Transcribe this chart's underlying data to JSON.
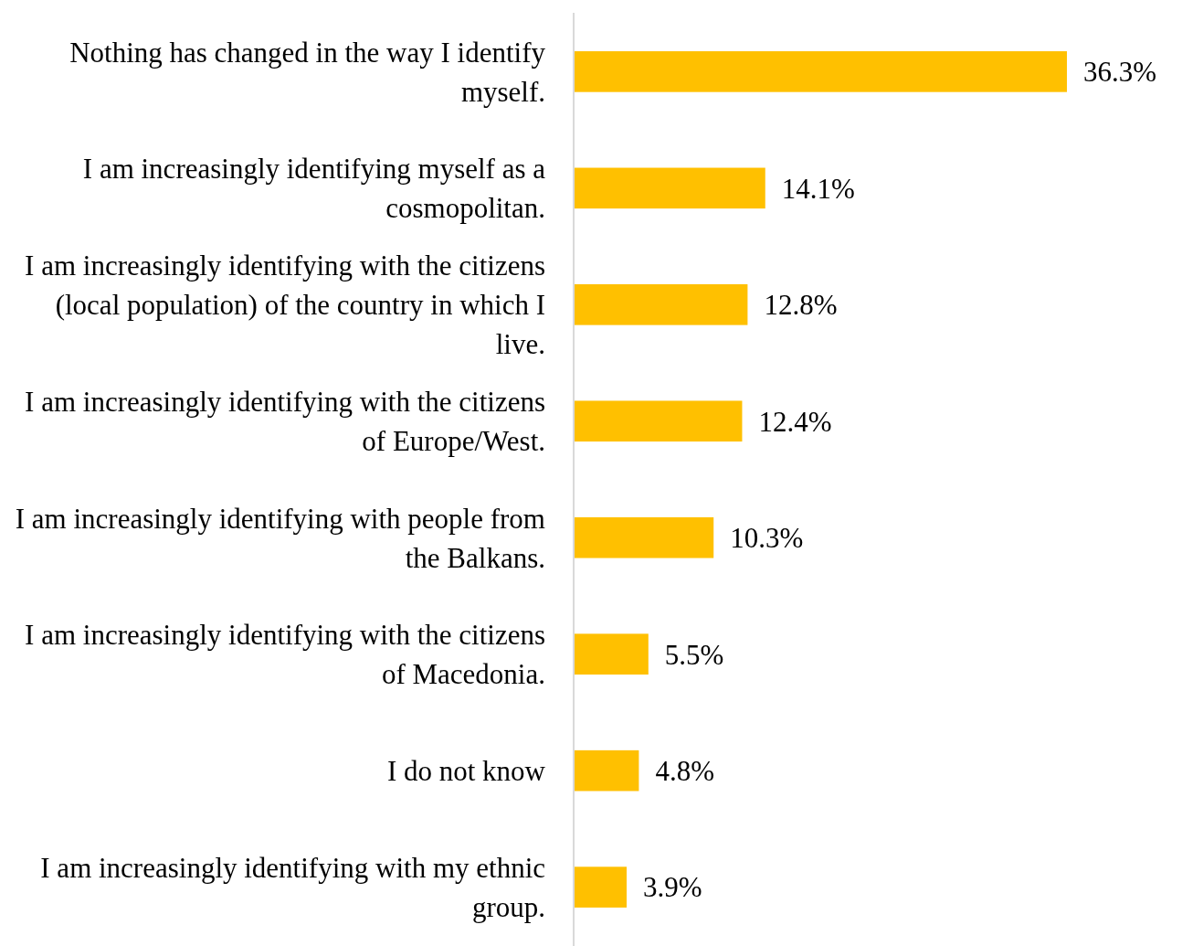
{
  "chart_data": {
    "type": "bar",
    "orientation": "horizontal",
    "relative": false,
    "data_labels": true,
    "color": "#ffc000",
    "categories": [
      "Nothing has changed in the way I identify myself.",
      "I am increasingly identifying myself as a cosmopolitan.",
      "I am increasingly identifying with the citizens (local population) of the country in which I live.",
      "I am increasingly identifying with the citizens of Europe/West.",
      "I am increasingly identifying with people from the Balkans.",
      "I am increasingly identifying with the citizens of Macedonia.",
      "I do not know",
      "I am increasingly identifying with my ethnic group."
    ],
    "values": [
      36.3,
      14.1,
      12.8,
      12.4,
      10.3,
      5.5,
      4.8,
      3.9
    ],
    "value_labels": [
      "36.3%",
      "14.1%",
      "12.8%",
      "12.4%",
      "10.3%",
      "5.5%",
      "4.8%",
      "3.9%"
    ]
  }
}
